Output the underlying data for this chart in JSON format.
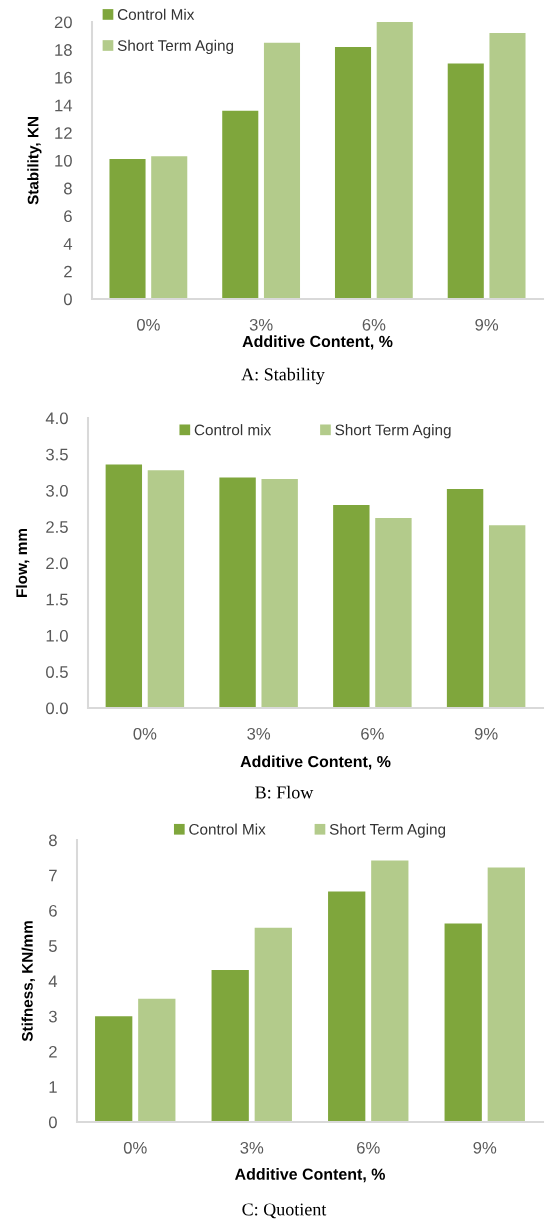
{
  "chart_data": [
    {
      "type": "bar",
      "categories": [
        "0%",
        "3%",
        "6%",
        "9%"
      ],
      "xlabel": "Additive Content, %",
      "ylabel": "Stability, KN",
      "series": [
        {
          "name": "Control Mix",
          "color": "#7fa63c",
          "values": [
            10.1,
            13.6,
            18.2,
            17.0
          ]
        },
        {
          "name": "Short Term Aging",
          "color": "#b3cb8b",
          "values": [
            10.3,
            18.5,
            20.0,
            19.2
          ]
        }
      ],
      "ylim": [
        0,
        20
      ],
      "yticks": [
        0,
        2,
        4,
        6,
        8,
        10,
        12,
        14,
        16,
        18,
        20
      ],
      "legend": "top left",
      "annotations": [
        "A: Stability"
      ]
    },
    {
      "type": "bar",
      "categories": [
        "0%",
        "3%",
        "6%",
        "9%"
      ],
      "xlabel": "Additive Content, %",
      "ylabel": "Flow, mm",
      "series": [
        {
          "name": "Control mix",
          "color": "#7fa63c",
          "values": [
            3.36,
            3.18,
            2.8,
            3.02
          ]
        },
        {
          "name": "Short Term Aging",
          "color": "#b3cb8b",
          "values": [
            3.28,
            3.16,
            2.62,
            2.52
          ]
        }
      ],
      "ylim": [
        0,
        4
      ],
      "yticks": [
        {
          "value": 0,
          "label": "0.0"
        },
        {
          "value": 0.5,
          "label": "0.5"
        },
        {
          "value": 1,
          "label": "1.0"
        },
        {
          "value": 1.5,
          "label": "1.5"
        },
        {
          "value": 2,
          "label": "2.0"
        },
        {
          "value": 2.5,
          "label": "2.5"
        },
        {
          "value": 3,
          "label": "3.0"
        },
        {
          "value": 3.5,
          "label": "3.5"
        },
        {
          "value": 4,
          "label": "4.0"
        }
      ],
      "legend": "top",
      "annotations": [
        "B: Flow"
      ]
    },
    {
      "type": "bar",
      "categories": [
        "0%",
        "3%",
        "6%",
        "9%"
      ],
      "xlabel": "Additive Content, %",
      "ylabel": "Stifness, KN/mm",
      "series": [
        {
          "name": "Control Mix",
          "color": "#7fa63c",
          "values": [
            3.0,
            4.31,
            6.54,
            5.63
          ]
        },
        {
          "name": "Short Term Aging",
          "color": "#b3cb8b",
          "values": [
            3.5,
            5.51,
            7.42,
            7.22
          ]
        }
      ],
      "ylim": [
        0,
        8
      ],
      "yticks": [
        0,
        1,
        2,
        3,
        4,
        5,
        6,
        7,
        8
      ],
      "legend": "top",
      "annotations": [
        "C: Quotient"
      ]
    }
  ]
}
